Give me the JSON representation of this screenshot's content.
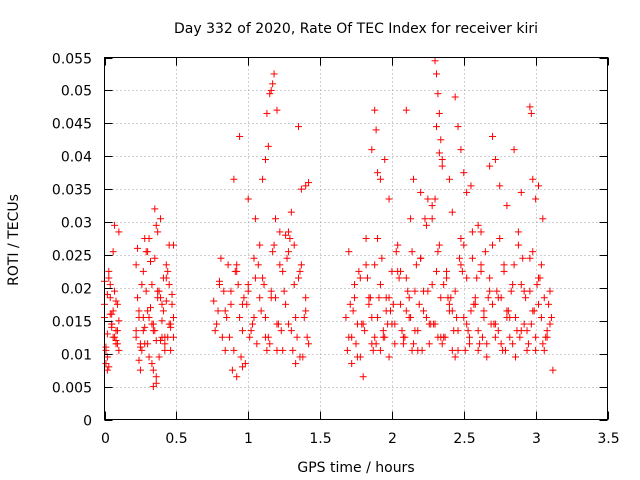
{
  "chart_data": {
    "type": "scatter",
    "title": "Day 332 of 2020, Rate Of TEC Index for receiver kiri",
    "xlabel": "GPS time / hours",
    "ylabel": "ROTI / TECUs",
    "xlim": [
      0,
      3.5
    ],
    "ylim": [
      0,
      0.055
    ],
    "xticks": [
      0,
      0.5,
      1,
      1.5,
      2,
      2.5,
      3,
      3.5
    ],
    "xtick_labels": [
      "0",
      "0.5",
      "1",
      "1.5",
      "2",
      "2.5",
      "3",
      "3.5"
    ],
    "yticks": [
      0,
      0.005,
      0.01,
      0.015,
      0.02,
      0.025,
      0.03,
      0.035,
      0.04,
      0.045,
      0.05,
      0.055
    ],
    "ytick_labels": [
      "0",
      "0.005",
      "0.01",
      "0.015",
      "0.02",
      "0.025",
      "0.03",
      "0.035",
      "0.04",
      "0.045",
      "0.05",
      "0.055"
    ],
    "grid": true,
    "marker": "+",
    "color": "#ff0000",
    "series": [
      {
        "name": "ROTI",
        "x": [
          0.0,
          0.01,
          0.02,
          0.03,
          0.04,
          0.05,
          0.06,
          0.07,
          0.08,
          0.09,
          0.1,
          0.0,
          0.02,
          0.04,
          0.06,
          0.08,
          0.1,
          0.01,
          0.03,
          0.05,
          0.07,
          0.09,
          0.0,
          0.02,
          0.04,
          0.06,
          0.08,
          0.1,
          0.01,
          0.03,
          0.05,
          0.07,
          0.09,
          0.02,
          0.05,
          0.08,
          0.22,
          0.23,
          0.24,
          0.25,
          0.26,
          0.27,
          0.28,
          0.29,
          0.3,
          0.31,
          0.32,
          0.33,
          0.34,
          0.35,
          0.36,
          0.37,
          0.38,
          0.39,
          0.4,
          0.41,
          0.42,
          0.43,
          0.44,
          0.45,
          0.46,
          0.47,
          0.48,
          0.22,
          0.24,
          0.26,
          0.28,
          0.3,
          0.32,
          0.34,
          0.36,
          0.38,
          0.4,
          0.42,
          0.44,
          0.46,
          0.48,
          0.23,
          0.25,
          0.27,
          0.29,
          0.31,
          0.33,
          0.35,
          0.37,
          0.39,
          0.41,
          0.43,
          0.45,
          0.47,
          0.22,
          0.25,
          0.28,
          0.31,
          0.34,
          0.37,
          0.4,
          0.43,
          0.46,
          0.24,
          0.27,
          0.3,
          0.33,
          0.36,
          0.39,
          0.42,
          0.45,
          0.48,
          0.35,
          0.36,
          0.34,
          0.76,
          0.78,
          0.8,
          0.82,
          0.84,
          0.86,
          0.88,
          0.9,
          0.92,
          0.94,
          0.96,
          0.98,
          1.0,
          1.02,
          1.04,
          1.06,
          1.08,
          1.1,
          1.12,
          1.14,
          1.16,
          1.18,
          1.2,
          1.22,
          1.24,
          1.26,
          1.28,
          1.3,
          1.32,
          1.34,
          1.36,
          1.38,
          1.4,
          1.42,
          0.77,
          0.81,
          0.85,
          0.89,
          0.93,
          0.97,
          1.01,
          1.05,
          1.09,
          1.13,
          1.17,
          1.21,
          1.25,
          1.29,
          1.33,
          1.37,
          1.41,
          0.79,
          0.83,
          0.87,
          0.91,
          0.95,
          0.99,
          1.03,
          1.07,
          1.11,
          1.15,
          1.19,
          1.23,
          1.27,
          1.31,
          1.35,
          1.39,
          0.8,
          0.84,
          0.88,
          0.92,
          0.96,
          1.0,
          1.04,
          1.08,
          1.12,
          1.16,
          1.2,
          1.24,
          1.28,
          1.32,
          1.36,
          1.4,
          0.9,
          0.94,
          1.0,
          1.1,
          1.14,
          1.15,
          1.16,
          1.17,
          1.18,
          1.2,
          1.13,
          1.12,
          1.35,
          1.37,
          1.4,
          1.42,
          1.3,
          1.05,
          1.26,
          1.22,
          0.92,
          0.96,
          1.19,
          1.28,
          1.33,
          1.68,
          1.7,
          1.72,
          1.74,
          1.76,
          1.78,
          1.8,
          1.82,
          1.84,
          1.86,
          1.88,
          1.9,
          1.92,
          1.94,
          1.96,
          1.98,
          2.0,
          2.02,
          2.04,
          2.06,
          2.08,
          2.1,
          2.12,
          2.14,
          2.16,
          2.18,
          2.2,
          2.22,
          2.24,
          2.26,
          2.28,
          2.3,
          2.32,
          2.34,
          2.36,
          2.38,
          2.4,
          2.42,
          2.44,
          2.46,
          2.48,
          2.5,
          2.52,
          2.54,
          2.56,
          2.58,
          2.6,
          2.62,
          2.64,
          2.66,
          2.68,
          2.7,
          2.72,
          2.74,
          2.76,
          2.78,
          2.8,
          2.82,
          2.84,
          2.86,
          2.88,
          2.9,
          2.92,
          2.94,
          2.96,
          2.98,
          3.0,
          3.02,
          3.04,
          3.06,
          3.08,
          3.1,
          1.69,
          1.73,
          1.77,
          1.81,
          1.85,
          1.89,
          1.93,
          1.97,
          2.01,
          2.05,
          2.09,
          2.13,
          2.17,
          2.21,
          2.25,
          2.29,
          2.33,
          2.37,
          2.41,
          2.45,
          2.49,
          2.53,
          2.57,
          2.61,
          2.65,
          2.69,
          2.73,
          2.77,
          2.81,
          2.85,
          2.89,
          2.93,
          2.97,
          3.01,
          3.05,
          3.09,
          1.71,
          1.75,
          1.79,
          1.83,
          1.87,
          1.91,
          1.95,
          1.99,
          2.03,
          2.07,
          2.11,
          2.15,
          2.19,
          2.23,
          2.27,
          2.31,
          2.35,
          2.39,
          2.43,
          2.47,
          2.51,
          2.55,
          2.59,
          2.63,
          2.67,
          2.71,
          2.75,
          2.79,
          2.83,
          2.87,
          2.91,
          2.95,
          2.99,
          3.03,
          3.07,
          3.11,
          1.7,
          1.74,
          1.78,
          1.82,
          1.86,
          1.9,
          1.94,
          1.98,
          2.02,
          2.06,
          2.1,
          2.14,
          2.18,
          2.22,
          2.26,
          2.3,
          2.34,
          2.38,
          2.42,
          2.46,
          2.5,
          2.54,
          2.58,
          2.62,
          2.66,
          2.7,
          2.74,
          2.78,
          2.82,
          2.86,
          2.9,
          2.94,
          2.98,
          3.02,
          3.06,
          3.1,
          1.72,
          1.76,
          1.8,
          1.84,
          1.88,
          1.92,
          1.96,
          2.0,
          2.04,
          2.08,
          2.12,
          2.16,
          2.2,
          2.24,
          2.28,
          2.32,
          2.36,
          2.4,
          2.44,
          2.48,
          2.52,
          2.56,
          2.6,
          2.64,
          2.68,
          2.72,
          2.76,
          2.8,
          2.84,
          2.88,
          2.92,
          2.96,
          3.0,
          3.04,
          3.08,
          3.12,
          1.88,
          1.89,
          1.86,
          1.9,
          1.92,
          2.13,
          2.3,
          2.31,
          2.32,
          2.33,
          2.34,
          2.35,
          2.31,
          2.33,
          2.44,
          2.46,
          2.48,
          2.5,
          2.52,
          2.55,
          2.7,
          2.72,
          2.68,
          2.75,
          2.85,
          2.96,
          2.97,
          2.98,
          2.8,
          2.9,
          3.0,
          3.02,
          3.05,
          2.35,
          2.4,
          2.25,
          2.28,
          2.42,
          2.6,
          2.62,
          1.95,
          1.98,
          2.1,
          2.15,
          2.2
        ],
        "y": [
          0.021,
          0.0085,
          0.019,
          0.008,
          0.016,
          0.0145,
          0.0255,
          0.0295,
          0.012,
          0.0135,
          0.0105,
          0.0175,
          0.0095,
          0.0205,
          0.0125,
          0.018,
          0.015,
          0.011,
          0.0225,
          0.014,
          0.0195,
          0.0115,
          0.0155,
          0.0075,
          0.0185,
          0.0165,
          0.0135,
          0.0285,
          0.0105,
          0.0215,
          0.0145,
          0.0125,
          0.0175,
          0.013,
          0.016,
          0.0115,
          0.0125,
          0.026,
          0.0155,
          0.0075,
          0.0105,
          0.0225,
          0.014,
          0.0195,
          0.0115,
          0.0275,
          0.017,
          0.0085,
          0.0135,
          0.0245,
          0.012,
          0.0185,
          0.0095,
          0.0305,
          0.015,
          0.0215,
          0.0105,
          0.018,
          0.0125,
          0.0265,
          0.014,
          0.019,
          0.0155,
          0.0135,
          0.009,
          0.0205,
          0.0115,
          0.0165,
          0.024,
          0.0145,
          0.0065,
          0.0195,
          0.0175,
          0.0125,
          0.0225,
          0.0145,
          0.0265,
          0.0185,
          0.011,
          0.0155,
          0.0255,
          0.0095,
          0.0205,
          0.0135,
          0.0285,
          0.012,
          0.0165,
          0.0235,
          0.0145,
          0.0175,
          0.0235,
          0.0115,
          0.0275,
          0.0155,
          0.0075,
          0.0195,
          0.0125,
          0.0215,
          0.0105,
          0.0165,
          0.0135,
          0.0255,
          0.0145,
          0.0295,
          0.0185,
          0.0115,
          0.0205,
          0.0125,
          0.032,
          0.0055,
          0.005,
          0.018,
          0.0145,
          0.021,
          0.0125,
          0.0165,
          0.0235,
          0.0195,
          0.0105,
          0.0225,
          0.0155,
          0.0175,
          0.0085,
          0.0205,
          0.0135,
          0.0245,
          0.0115,
          0.0185,
          0.0215,
          0.0155,
          0.0125,
          0.0195,
          0.0265,
          0.0145,
          0.0235,
          0.0105,
          0.0175,
          0.0255,
          0.0135,
          0.0205,
          0.0125,
          0.0225,
          0.0095,
          0.0165,
          0.0115,
          0.0135,
          0.0245,
          0.0155,
          0.0075,
          0.0205,
          0.0185,
          0.0125,
          0.0215,
          0.0165,
          0.0105,
          0.0255,
          0.0145,
          0.0195,
          0.0275,
          0.0155,
          0.0235,
          0.0125,
          0.0165,
          0.0195,
          0.0125,
          0.0225,
          0.0095,
          0.0175,
          0.0145,
          0.0235,
          0.0205,
          0.0115,
          0.0185,
          0.0135,
          0.0245,
          0.0105,
          0.0215,
          0.0155,
          0.0205,
          0.0105,
          0.0175,
          0.0235,
          0.0135,
          0.0195,
          0.0155,
          0.0265,
          0.0125,
          0.0185,
          0.0105,
          0.0225,
          0.0145,
          0.0265,
          0.0095,
          0.0185,
          0.0365,
          0.043,
          0.0335,
          0.0365,
          0.0415,
          0.0495,
          0.05,
          0.051,
          0.0525,
          0.047,
          0.0465,
          0.0395,
          0.0445,
          0.035,
          0.0355,
          0.036,
          0.0315,
          0.0305,
          0.028,
          0.0285,
          0.0065,
          0.008,
          0.0305,
          0.0285,
          0.0085,
          0.0155,
          0.0255,
          0.0125,
          0.0185,
          0.0095,
          0.0215,
          0.0145,
          0.0275,
          0.0175,
          0.0115,
          0.0235,
          0.0155,
          0.0205,
          0.0125,
          0.0185,
          0.0095,
          0.0225,
          0.0145,
          0.0265,
          0.0175,
          0.0125,
          0.0215,
          0.0155,
          0.0105,
          0.0195,
          0.0135,
          0.0245,
          0.0165,
          0.0295,
          0.0115,
          0.0205,
          0.0145,
          0.0255,
          0.0185,
          0.0125,
          0.0225,
          0.0165,
          0.0105,
          0.0195,
          0.0135,
          0.0275,
          0.0155,
          0.0215,
          0.0115,
          0.0245,
          0.0175,
          0.0135,
          0.0225,
          0.0155,
          0.0095,
          0.0195,
          0.0265,
          0.0145,
          0.0185,
          0.0115,
          0.0235,
          0.0165,
          0.0125,
          0.0205,
          0.0155,
          0.0285,
          0.0135,
          0.0195,
          0.0105,
          0.0245,
          0.0165,
          0.0125,
          0.0215,
          0.0155,
          0.0185,
          0.0125,
          0.0145,
          0.0105,
          0.0165,
          0.0225,
          0.0135,
          0.0185,
          0.0115,
          0.0245,
          0.0145,
          0.0175,
          0.0215,
          0.0125,
          0.0155,
          0.0235,
          0.0105,
          0.0195,
          0.0145,
          0.0265,
          0.0125,
          0.0185,
          0.0155,
          0.0225,
          0.0135,
          0.0175,
          0.0115,
          0.0255,
          0.0145,
          0.0195,
          0.0105,
          0.0165,
          0.0235,
          0.0125,
          0.0185,
          0.0145,
          0.0205,
          0.0115,
          0.0175,
          0.0175,
          0.0115,
          0.0145,
          0.0215,
          0.0105,
          0.0185,
          0.0125,
          0.0165,
          0.0255,
          0.0135,
          0.0195,
          0.0115,
          0.0175,
          0.0305,
          0.0145,
          0.0225,
          0.0115,
          0.0185,
          0.0135,
          0.0245,
          0.0105,
          0.0165,
          0.0215,
          0.0125,
          0.0185,
          0.0145,
          0.0275,
          0.0105,
          0.0195,
          0.0135,
          0.0245,
          0.0115,
          0.0165,
          0.0215,
          0.0125,
          0.0155,
          0.0125,
          0.0205,
          0.0095,
          0.0235,
          0.0155,
          0.0275,
          0.0135,
          0.0185,
          0.0115,
          0.0225,
          0.0165,
          0.0255,
          0.0105,
          0.0195,
          0.0145,
          0.0335,
          0.0125,
          0.0215,
          0.0165,
          0.0105,
          0.0265,
          0.0125,
          0.0185,
          0.0235,
          0.0115,
          0.0175,
          0.0135,
          0.0225,
          0.0155,
          0.0095,
          0.0205,
          0.0135,
          0.0255,
          0.0175,
          0.0105,
          0.0195,
          0.0085,
          0.0145,
          0.0065,
          0.0185,
          0.0125,
          0.0105,
          0.0165,
          0.0145,
          0.0225,
          0.0115,
          0.0185,
          0.0135,
          0.0245,
          0.0155,
          0.0305,
          0.0125,
          0.0205,
          0.0175,
          0.0095,
          0.0235,
          0.0145,
          0.0285,
          0.0105,
          0.0165,
          0.0215,
          0.0125,
          0.0185,
          0.0155,
          0.0115,
          0.0265,
          0.0145,
          0.0195,
          0.0105,
          0.0235,
          0.0135,
          0.0075,
          0.047,
          0.044,
          0.041,
          0.0375,
          0.0365,
          0.0305,
          0.0545,
          0.0525,
          0.0495,
          0.0465,
          0.0425,
          0.0395,
          0.0445,
          0.0405,
          0.049,
          0.0445,
          0.041,
          0.0375,
          0.0345,
          0.0355,
          0.043,
          0.0395,
          0.0385,
          0.0355,
          0.041,
          0.0475,
          0.0465,
          0.0365,
          0.0325,
          0.0345,
          0.0335,
          0.0355,
          0.0305,
          0.0385,
          0.0365,
          0.0335,
          0.0325,
          0.0315,
          0.0295,
          0.0285,
          0.0395,
          0.0335,
          0.047,
          0.0365,
          0.0345
        ]
      }
    ]
  }
}
